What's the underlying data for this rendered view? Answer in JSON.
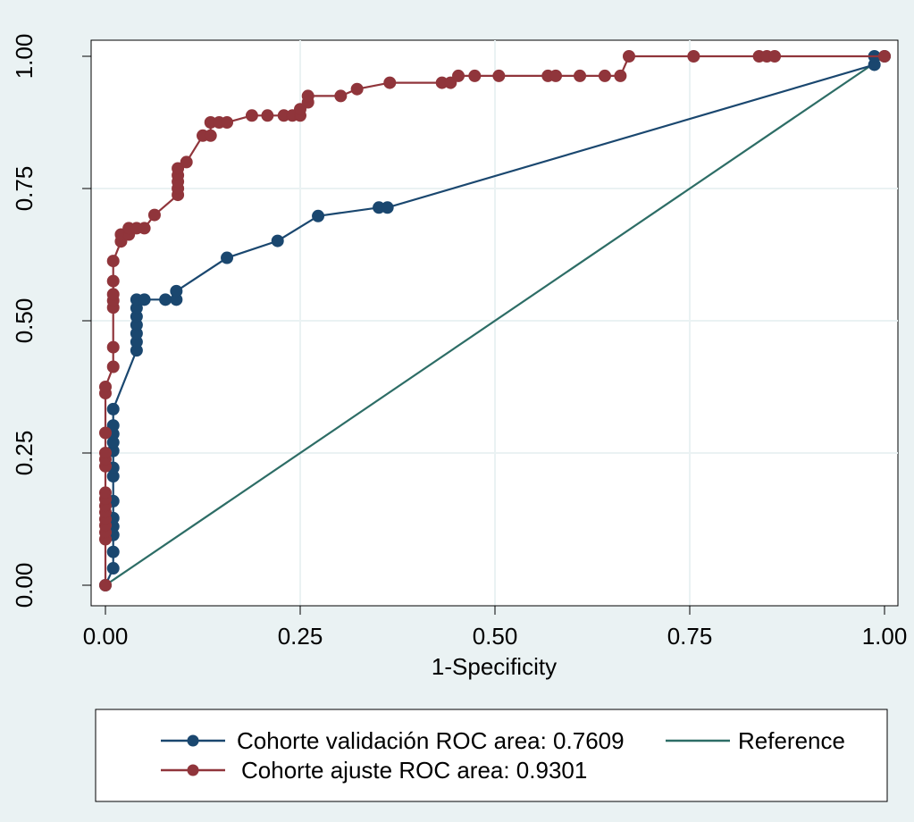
{
  "chart_data": {
    "type": "line",
    "xlabel": "1-Specificity",
    "ylabel": "",
    "xlim": [
      0,
      1
    ],
    "ylim": [
      0,
      1
    ],
    "grid": true,
    "legend_position": "bottom",
    "x_ticks": [
      "0.00",
      "0.25",
      "0.50",
      "0.75",
      "1.00"
    ],
    "y_ticks": [
      "0.00",
      "0.25",
      "0.50",
      "0.75",
      "1.00"
    ],
    "series": [
      {
        "name": "Cohorte validación ROC area: 0.7609",
        "color": "#1a476f",
        "markers": true,
        "x": [
          0,
          0.01,
          0.01,
          0.01,
          0.01,
          0.01,
          0.01,
          0.01,
          0.01,
          0.01,
          0.01,
          0.01,
          0.01,
          0.01,
          0.04,
          0.04,
          0.04,
          0.04,
          0.04,
          0.04,
          0.04,
          0.05,
          0.077,
          0.091,
          0.091,
          0.156,
          0.221,
          0.273,
          0.351,
          0.362,
          0.987,
          0.987,
          1.0
        ],
        "y": [
          0,
          0.032,
          0.063,
          0.095,
          0.111,
          0.127,
          0.159,
          0.206,
          0.222,
          0.254,
          0.27,
          0.286,
          0.302,
          0.333,
          0.444,
          0.46,
          0.476,
          0.492,
          0.508,
          0.524,
          0.54,
          0.54,
          0.54,
          0.54,
          0.556,
          0.619,
          0.651,
          0.698,
          0.714,
          0.714,
          0.984,
          1.0,
          1.0
        ]
      },
      {
        "name": "Cohorte ajuste ROC area: 0.9301",
        "color": "#90353b",
        "markers": true,
        "x": [
          0,
          0,
          0,
          0,
          0,
          0,
          0,
          0,
          0,
          0,
          0,
          0,
          0,
          0,
          0,
          0.01,
          0.01,
          0.01,
          0.01,
          0.01,
          0.01,
          0.01,
          0.02,
          0.02,
          0.03,
          0.03,
          0.04,
          0.05,
          0.063,
          0.093,
          0.093,
          0.093,
          0.093,
          0.093,
          0.104,
          0.125,
          0.135,
          0.135,
          0.146,
          0.156,
          0.188,
          0.208,
          0.229,
          0.24,
          0.25,
          0.25,
          0.26,
          0.26,
          0.302,
          0.323,
          0.365,
          0.432,
          0.443,
          0.453,
          0.474,
          0.505,
          0.568,
          0.578,
          0.609,
          0.641,
          0.661,
          0.672,
          0.755,
          0.839,
          0.849,
          0.859,
          1.0
        ],
        "y": [
          0,
          0.087,
          0.1,
          0.113,
          0.125,
          0.138,
          0.15,
          0.163,
          0.175,
          0.225,
          0.238,
          0.25,
          0.288,
          0.363,
          0.375,
          0.413,
          0.45,
          0.525,
          0.538,
          0.55,
          0.575,
          0.613,
          0.65,
          0.663,
          0.663,
          0.675,
          0.675,
          0.675,
          0.7,
          0.738,
          0.75,
          0.763,
          0.775,
          0.788,
          0.8,
          0.85,
          0.85,
          0.875,
          0.875,
          0.875,
          0.888,
          0.888,
          0.888,
          0.888,
          0.888,
          0.9,
          0.913,
          0.925,
          0.925,
          0.938,
          0.95,
          0.95,
          0.95,
          0.963,
          0.963,
          0.963,
          0.963,
          0.963,
          0.963,
          0.963,
          0.963,
          1.0,
          1.0,
          1.0,
          1.0,
          1.0,
          1.0
        ]
      },
      {
        "name": "Reference",
        "color": "#2d6d66",
        "markers": false,
        "x": [
          0,
          1
        ],
        "y": [
          0,
          1
        ]
      }
    ],
    "legend": [
      {
        "label": "Cohorte validación ROC area: 0.7609",
        "color": "#1a476f",
        "marker": true
      },
      {
        "label": "Reference",
        "color": "#2d6d66",
        "marker": false
      },
      {
        "label": "Cohorte ajuste ROC area: 0.9301",
        "color": "#90353b",
        "marker": true
      }
    ]
  }
}
